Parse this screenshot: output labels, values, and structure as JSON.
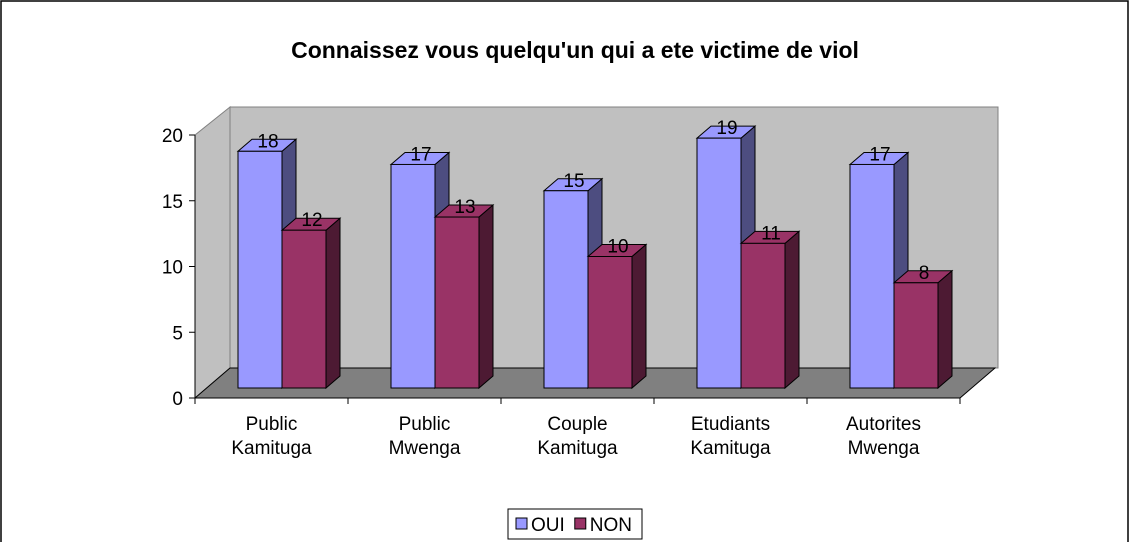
{
  "chart_data": {
    "type": "bar3d",
    "title": "Connaissez vous quelqu'un qui a ete victime de viol",
    "categories": [
      "Public Kamituga",
      "Public Mwenga",
      "Couple Kamituga",
      "Etudiants Kamituga",
      "Autorites Mwenga"
    ],
    "series": [
      {
        "name": "OUI",
        "color": "#9999ff",
        "values": [
          18,
          17,
          15,
          19,
          17
        ]
      },
      {
        "name": "NON",
        "color": "#993366",
        "values": [
          12,
          13,
          10,
          11,
          8
        ]
      }
    ],
    "ylim": [
      0,
      20
    ],
    "yticks": [
      0,
      5,
      10,
      15,
      20
    ],
    "legend": "bottom"
  }
}
